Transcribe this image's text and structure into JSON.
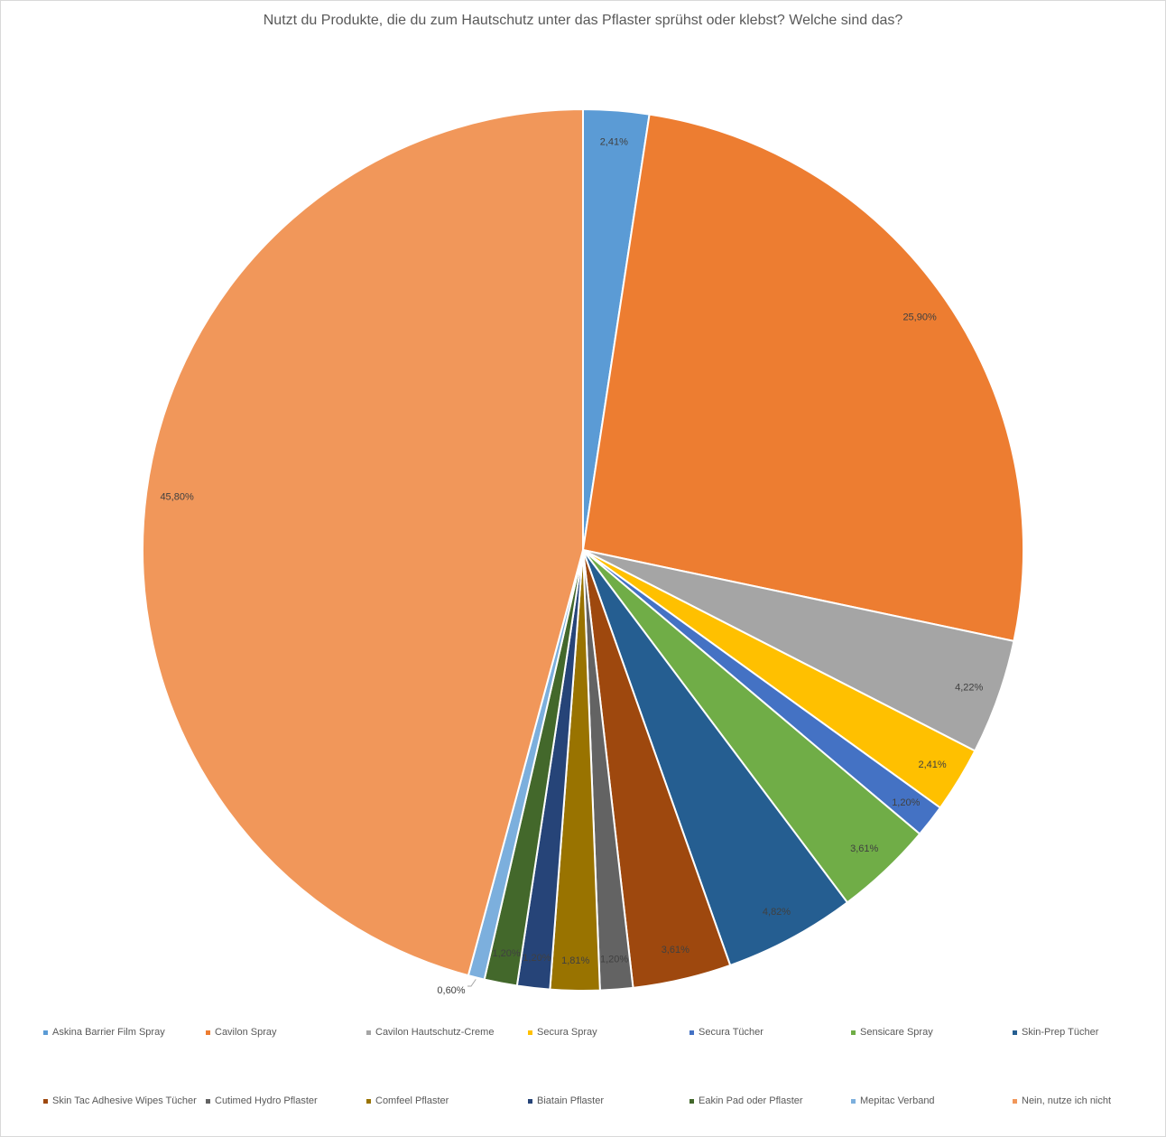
{
  "chart_data": {
    "type": "pie",
    "title": "Nutzt du Produkte, die du zum Hautschutz unter das Pflaster sprühst oder klebst? Welche sind das?",
    "legend_position": "bottom",
    "slices": [
      {
        "name": "Askina Barrier Film Spray",
        "value": 2.41,
        "label": "2,41%",
        "color": "#5B9BD5"
      },
      {
        "name": "Cavilon Spray",
        "value": 25.9,
        "label": "25,90%",
        "color": "#ED7D31"
      },
      {
        "name": "Cavilon Hautschutz-Creme",
        "value": 4.22,
        "label": "4,22%",
        "color": "#A5A5A5"
      },
      {
        "name": "Secura Spray",
        "value": 2.41,
        "label": "2,41%",
        "color": "#FFC000"
      },
      {
        "name": "Secura Tücher",
        "value": 1.2,
        "label": "1,20%",
        "color": "#4472C4"
      },
      {
        "name": "Sensicare Spray",
        "value": 3.61,
        "label": "3,61%",
        "color": "#70AD47"
      },
      {
        "name": "Skin-Prep Tücher",
        "value": 4.82,
        "label": "4,82%",
        "color": "#255E91"
      },
      {
        "name": "Skin Tac Adhesive Wipes Tücher",
        "value": 3.61,
        "label": "3,61%",
        "color": "#9E480E"
      },
      {
        "name": "Cutimed Hydro Pflaster",
        "value": 1.2,
        "label": "1,20%",
        "color": "#636363"
      },
      {
        "name": "Comfeel Pflaster",
        "value": 1.81,
        "label": "1,81%",
        "color": "#997300"
      },
      {
        "name": "Biatain Pflaster",
        "value": 1.2,
        "label": "1,20%",
        "color": "#264478"
      },
      {
        "name": "Eakin Pad oder Pflaster",
        "value": 1.2,
        "label": "1,20%",
        "color": "#43682B"
      },
      {
        "name": "Mepitac Verband",
        "value": 0.6,
        "label": "0,60%",
        "color": "#7CAFDD"
      },
      {
        "name": "Nein, nutze ich nicht",
        "value": 45.8,
        "label": "45,80%",
        "color": "#F1975A"
      }
    ]
  }
}
